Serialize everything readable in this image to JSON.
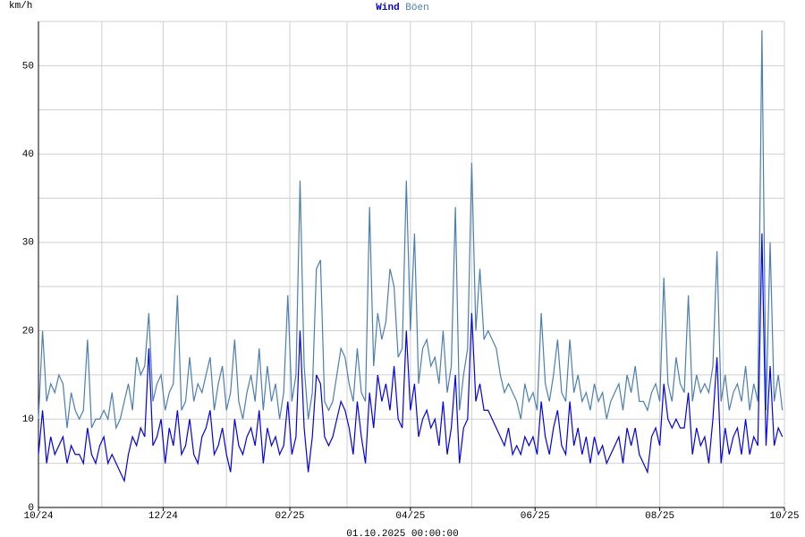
{
  "chart_data": {
    "type": "line",
    "ylabel": "km/h",
    "footer": "01.10.2025 00:00:00",
    "x": [
      0,
      2,
      4,
      6,
      8,
      10,
      12,
      14,
      16,
      18,
      20,
      22,
      24,
      26,
      28,
      30,
      32,
      34,
      36,
      38,
      40,
      42,
      44,
      46,
      48,
      50,
      52,
      54,
      56,
      58,
      60,
      62,
      64,
      66,
      68,
      70,
      72,
      74,
      76,
      78,
      80,
      82,
      84,
      86,
      88,
      90,
      92,
      94,
      96,
      98,
      100,
      102,
      104,
      106,
      108,
      110,
      112,
      114,
      116,
      118,
      120,
      122,
      124,
      126,
      128,
      130,
      132,
      134,
      136,
      138,
      140,
      142,
      144,
      146,
      148,
      150,
      152,
      154,
      156,
      158,
      160,
      162,
      164,
      166,
      168,
      170,
      172,
      174,
      176,
      178,
      180,
      182,
      184,
      186,
      188,
      190,
      192,
      194,
      196,
      198,
      200,
      202,
      204,
      206,
      208,
      210,
      212,
      214,
      216,
      218,
      220,
      222,
      224,
      226,
      228,
      230,
      232,
      234,
      236,
      238,
      240,
      242,
      244,
      246,
      248,
      250,
      252,
      254,
      256,
      258,
      260,
      262,
      264,
      266,
      268,
      270,
      272,
      274,
      276,
      278,
      280,
      282,
      284,
      286,
      288,
      290,
      292,
      294,
      296,
      298,
      300,
      302,
      304,
      306,
      308,
      310,
      312,
      314,
      316,
      318,
      320,
      322,
      324,
      326,
      328,
      330,
      332,
      334,
      336,
      338,
      340,
      342,
      344,
      346,
      348,
      350,
      352,
      354,
      356,
      358,
      360,
      362,
      364
    ],
    "series": [
      {
        "name": "Wind",
        "color": "#0000ee",
        "values": [
          6,
          11,
          5,
          8,
          6,
          7,
          8,
          5,
          7,
          6,
          6,
          5,
          9,
          6,
          5,
          7,
          8,
          5,
          6,
          5,
          4,
          3,
          6,
          8,
          7,
          9,
          8,
          18,
          7,
          8,
          10,
          5,
          9,
          7,
          11,
          6,
          7,
          10,
          6,
          5,
          8,
          9,
          11,
          6,
          7,
          9,
          6,
          4,
          10,
          7,
          6,
          8,
          9,
          7,
          11,
          5,
          9,
          7,
          8,
          6,
          7,
          12,
          6,
          8,
          20,
          9,
          4,
          8,
          15,
          14,
          8,
          7,
          8,
          10,
          12,
          11,
          9,
          6,
          12,
          8,
          5,
          13,
          9,
          15,
          12,
          14,
          11,
          16,
          10,
          9,
          20,
          11,
          14,
          8,
          10,
          11,
          9,
          10,
          7,
          12,
          6,
          9,
          15,
          5,
          9,
          10,
          22,
          12,
          14,
          11,
          11,
          10,
          9,
          8,
          7,
          9,
          6,
          7,
          6,
          8,
          7,
          8,
          6,
          12,
          8,
          6,
          9,
          11,
          7,
          6,
          12,
          7,
          9,
          6,
          8,
          5,
          8,
          6,
          7,
          5,
          6,
          7,
          8,
          5,
          9,
          7,
          9,
          6,
          5,
          4,
          8,
          9,
          7,
          14,
          10,
          9,
          10,
          9,
          9,
          13,
          6,
          9,
          7,
          8,
          5,
          10,
          17,
          5,
          9,
          6,
          8,
          9,
          6,
          10,
          6,
          8,
          7,
          31,
          7,
          16,
          7,
          9,
          8
        ]
      },
      {
        "name": "Böen",
        "color": "#4a7fb0",
        "values": [
          10,
          20,
          12,
          14,
          13,
          15,
          14,
          9,
          13,
          11,
          10,
          11,
          19,
          9,
          10,
          10,
          11,
          10,
          13,
          9,
          10,
          12,
          14,
          11,
          17,
          15,
          16,
          22,
          12,
          14,
          15,
          11,
          13,
          14,
          24,
          11,
          12,
          17,
          12,
          14,
          13,
          15,
          17,
          11,
          14,
          16,
          11,
          13,
          19,
          12,
          10,
          13,
          15,
          12,
          18,
          11,
          16,
          12,
          14,
          10,
          13,
          24,
          12,
          15,
          37,
          16,
          10,
          13,
          27,
          28,
          12,
          11,
          12,
          15,
          18,
          17,
          14,
          12,
          18,
          13,
          12,
          34,
          16,
          22,
          19,
          21,
          27,
          25,
          17,
          18,
          37,
          20,
          31,
          14,
          18,
          19,
          16,
          17,
          14,
          20,
          13,
          16,
          34,
          11,
          15,
          18,
          39,
          20,
          27,
          19,
          20,
          19,
          18,
          15,
          13,
          14,
          13,
          12,
          10,
          14,
          12,
          13,
          11,
          22,
          14,
          12,
          15,
          19,
          13,
          12,
          19,
          13,
          15,
          12,
          13,
          11,
          14,
          12,
          13,
          10,
          12,
          13,
          14,
          11,
          15,
          13,
          16,
          12,
          12,
          11,
          13,
          14,
          12,
          26,
          14,
          12,
          17,
          14,
          13,
          24,
          12,
          15,
          13,
          14,
          13,
          16,
          29,
          12,
          15,
          11,
          13,
          14,
          12,
          16,
          11,
          14,
          12,
          54,
          11,
          30,
          12,
          15,
          11
        ]
      }
    ],
    "xlim": [
      0,
      365
    ],
    "xticks": [
      {
        "value": 0,
        "label": "10/24"
      },
      {
        "value": 61,
        "label": "12/24"
      },
      {
        "value": 123,
        "label": "02/25"
      },
      {
        "value": 182,
        "label": "04/25"
      },
      {
        "value": 243,
        "label": "06/25"
      },
      {
        "value": 304,
        "label": "08/25"
      },
      {
        "value": 365,
        "label": "10/25"
      }
    ],
    "xgrid": [
      31,
      61,
      92,
      123,
      151,
      182,
      212,
      243,
      273,
      304,
      335,
      365
    ],
    "ylim": [
      0,
      55
    ],
    "yticks": [
      0,
      10,
      20,
      30,
      40,
      50
    ],
    "ygrid": [
      5,
      10,
      15,
      20,
      25,
      30,
      35,
      40,
      45,
      50,
      55
    ],
    "grid": true
  }
}
